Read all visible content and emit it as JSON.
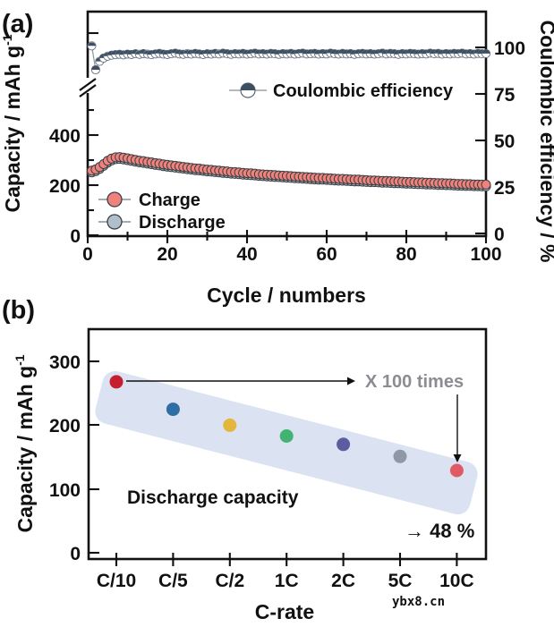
{
  "panel_a": {
    "label": "(a)",
    "xlabel": "Cycle / numbers",
    "ylabel_left": "Capacity / mAh g",
    "ylabel_left_sup": "-1",
    "ylabel_right": "Coulombic efficiency / %",
    "xticks": [
      "0",
      "20",
      "40",
      "60",
      "80",
      "100"
    ],
    "yticks_left": [
      "400",
      "200",
      "0"
    ],
    "yticks_right": [
      "100",
      "75",
      "50",
      "25",
      "0"
    ],
    "legend": {
      "efficiency": "Coulombic efficiency",
      "charge": "Charge",
      "discharge": "Discharge"
    }
  },
  "panel_b": {
    "label": "(b)",
    "xlabel": "C-rate",
    "ylabel": "Capacity / mAh g",
    "ylabel_sup": "-1",
    "yticks": [
      "300",
      "200",
      "100",
      "0"
    ],
    "xticks": [
      "C/10",
      "C/5",
      "C/2",
      "1C",
      "2C",
      "5C",
      "10C"
    ],
    "annotation_times": "X 100 times",
    "annotation_retention": "→ 48 %",
    "annotation_series": "Discharge capacity"
  },
  "watermark": "ybx8.cn",
  "colors": {
    "charge": "#F0827C",
    "discharge": "#AFC0CB",
    "efficiency_dark": "#3E4F63",
    "band": "#DBE2F1",
    "annotation_grey": "#8C8C92",
    "rate_points": [
      "#C41E2F",
      "#2F6DA5",
      "#E3B63C",
      "#41B373",
      "#5A5DA0",
      "#8E98A6",
      "#E05A66"
    ]
  },
  "chart_data": [
    {
      "type": "scatter",
      "panel": "a",
      "title": "",
      "xlabel": "Cycle / numbers",
      "ylabel_left": "Capacity / mAh g-1",
      "ylabel_right": "Coulombic efficiency / %",
      "xlim": [
        0,
        100
      ],
      "ylim_left": [
        0,
        560
      ],
      "ylim_right": [
        0,
        110
      ],
      "axis_break_left_axis": true,
      "grid": false,
      "legend_position": "inside",
      "x_start": 1,
      "x_step": 1,
      "series": [
        {
          "name": "Charge",
          "axis": "left",
          "marker": "circle",
          "color": "#F0827C",
          "values": [
            258,
            263,
            272,
            284,
            297,
            306,
            311,
            312,
            310,
            307,
            304,
            301,
            298,
            296,
            293,
            291,
            288,
            286,
            283,
            281,
            279,
            277,
            275,
            273,
            271,
            269,
            267,
            266,
            264,
            262,
            261,
            259,
            258,
            256,
            255,
            253,
            252,
            251,
            249,
            248,
            247,
            246,
            244,
            243,
            242,
            241,
            240,
            239,
            238,
            237,
            236,
            235,
            234,
            233,
            232,
            231,
            230,
            229,
            229,
            228,
            227,
            226,
            225,
            225,
            224,
            223,
            222,
            222,
            221,
            220,
            219,
            219,
            218,
            217,
            217,
            216,
            215,
            215,
            214,
            213,
            213,
            212,
            211,
            211,
            210,
            210,
            209,
            208,
            208,
            207,
            207,
            206,
            205,
            205,
            204,
            204,
            203,
            203,
            202,
            202
          ]
        },
        {
          "name": "Discharge",
          "axis": "left",
          "marker": "circle",
          "color": "#AFC0CB",
          "values": [
            251,
            256,
            265,
            277,
            290,
            299,
            304,
            305,
            303,
            300,
            297,
            294,
            291,
            289,
            286,
            284,
            281,
            279,
            276,
            274,
            272,
            270,
            268,
            266,
            264,
            262,
            260,
            259,
            257,
            255,
            254,
            252,
            251,
            249,
            248,
            246,
            245,
            244,
            242,
            241,
            240,
            239,
            237,
            236,
            235,
            234,
            233,
            232,
            231,
            230,
            229,
            228,
            227,
            226,
            225,
            224,
            223,
            222,
            222,
            221,
            220,
            219,
            218,
            218,
            217,
            216,
            215,
            215,
            214,
            213,
            212,
            212,
            211,
            210,
            210,
            209,
            208,
            208,
            207,
            206,
            206,
            205,
            204,
            204,
            203,
            203,
            202,
            201,
            201,
            200,
            200,
            199,
            198,
            198,
            197,
            197,
            196,
            196,
            195,
            195
          ]
        },
        {
          "name": "Coulombic efficiency",
          "axis": "right",
          "marker": "half-filled-circle",
          "color": "#3E4F63",
          "values": [
            100.8,
            88.0,
            92.5,
            94.3,
            95.3,
            95.8,
            96.1,
            96.3,
            96.0,
            96.4,
            96.2,
            96.6,
            96.3,
            96.7,
            96.4,
            96.1,
            96.5,
            96.8,
            96.4,
            96.2,
            96.6,
            96.9,
            96.5,
            96.3,
            96.7,
            96.4,
            96.8,
            96.5,
            96.2,
            96.6,
            96.4,
            96.8,
            96.5,
            96.9,
            96.6,
            96.3,
            96.7,
            96.5,
            96.8,
            96.4,
            96.6,
            96.9,
            96.5,
            96.7,
            96.4,
            96.8,
            96.6,
            96.3,
            96.7,
            96.5,
            96.8,
            96.4,
            96.7,
            96.9,
            96.5,
            96.6,
            96.8,
            96.4,
            96.7,
            96.5,
            96.9,
            96.6,
            96.4,
            96.8,
            96.5,
            96.7,
            96.3,
            96.6,
            96.8,
            96.5,
            96.7,
            96.4,
            96.6,
            96.9,
            96.5,
            96.8,
            96.6,
            96.3,
            96.7,
            96.5,
            96.8,
            96.6,
            96.4,
            96.7,
            96.5,
            96.9,
            96.6,
            96.8,
            96.4,
            96.7,
            96.5,
            96.8,
            96.6,
            96.9,
            96.5,
            96.7,
            96.4,
            96.8,
            96.6,
            96.7
          ]
        }
      ]
    },
    {
      "type": "scatter",
      "panel": "b",
      "title": "",
      "xlabel": "C-rate",
      "ylabel": "Capacity / mAh g-1",
      "categories": [
        "C/10",
        "C/5",
        "C/2",
        "1C",
        "2C",
        "5C",
        "10C"
      ],
      "values": [
        268,
        225,
        200,
        183,
        170,
        151,
        129
      ],
      "point_colors": [
        "#C41E2F",
        "#2F6DA5",
        "#E3B63C",
        "#41B373",
        "#5A5DA0",
        "#8E98A6",
        "#E05A66"
      ],
      "ylim": [
        0,
        350
      ],
      "grid": false,
      "annotations": [
        "X 100 times",
        "→ 48 %",
        "Discharge capacity"
      ]
    }
  ]
}
